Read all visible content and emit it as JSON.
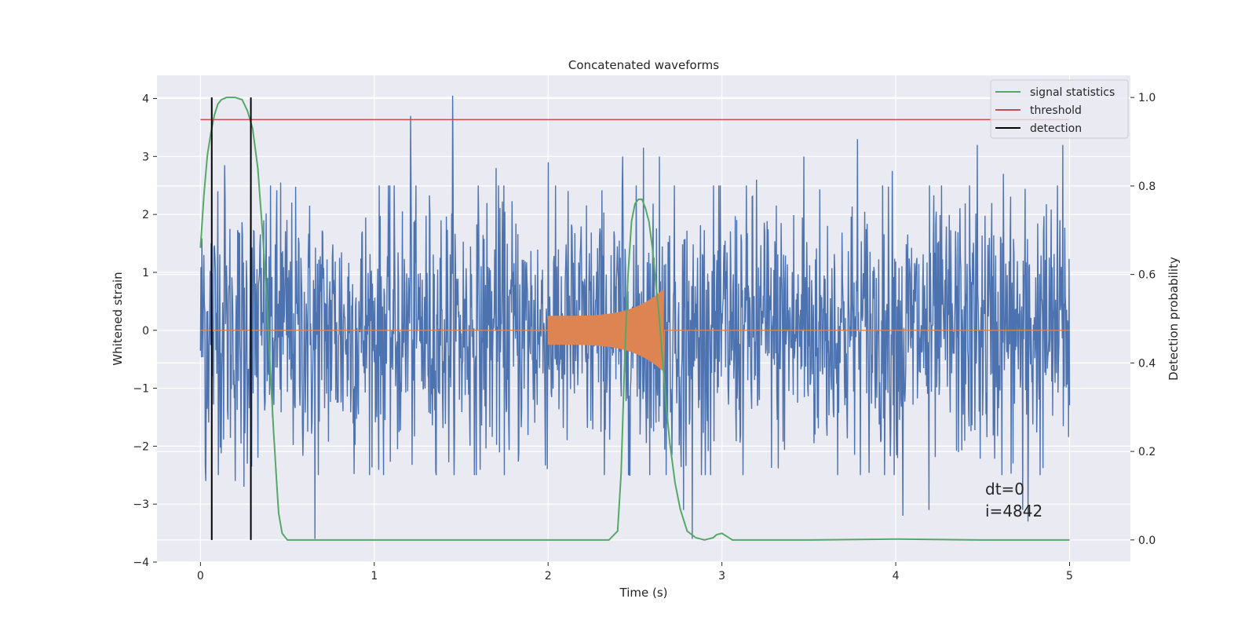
{
  "chart_data": {
    "type": "line",
    "title": "Concatenated waveforms",
    "xlabel": "Time (s)",
    "ylabel_left": "Whitened strain",
    "ylabel_right": "Detection probability",
    "xlim": [
      -0.25,
      5.35
    ],
    "ylim_left": [
      -4.0,
      4.4
    ],
    "ylim_right": [
      -0.05,
      1.05
    ],
    "x_ticks": [
      0,
      1,
      2,
      3,
      4,
      5
    ],
    "x_tick_labels": [
      "0",
      "1",
      "2",
      "3",
      "4",
      "5"
    ],
    "y_left_ticks": [
      -4,
      -3,
      -2,
      -1,
      0,
      1,
      2,
      3,
      4
    ],
    "y_left_tick_labels": [
      "−4",
      "−3",
      "−2",
      "−1",
      "0",
      "1",
      "2",
      "3",
      "4"
    ],
    "y_right_ticks": [
      0.0,
      0.2,
      0.4,
      0.6,
      0.8,
      1.0
    ],
    "y_right_tick_labels": [
      "0.0",
      "0.2",
      "0.4",
      "0.6",
      "0.8",
      "1.0"
    ],
    "grid": true,
    "legend_position": "top-right",
    "series": [
      {
        "name": "noise",
        "axis": "left",
        "color": "#4c72b0",
        "kind": "noise-band",
        "x_range": [
          0,
          5
        ],
        "typical_amplitude": 1.2,
        "peaks": [
          {
            "x": 0.02,
            "y": 1.3
          },
          {
            "x": 0.03,
            "y": -2.6
          },
          {
            "x": 0.06,
            "y": 1.5
          },
          {
            "x": 0.1,
            "y": 2.4
          },
          {
            "x": 0.14,
            "y": 2.85
          },
          {
            "x": 0.2,
            "y": -2.6
          },
          {
            "x": 0.25,
            "y": -2.7
          },
          {
            "x": 0.29,
            "y": 2.5
          },
          {
            "x": 0.33,
            "y": -2.2
          },
          {
            "x": 0.46,
            "y": 2.55
          },
          {
            "x": 0.66,
            "y": -3.6
          },
          {
            "x": 1.21,
            "y": 3.7
          },
          {
            "x": 1.45,
            "y": 4.05
          },
          {
            "x": 1.7,
            "y": 2.8
          },
          {
            "x": 2.0,
            "y": 2.9
          },
          {
            "x": 2.43,
            "y": 3.0
          },
          {
            "x": 2.55,
            "y": 3.15
          },
          {
            "x": 2.64,
            "y": 3.0
          },
          {
            "x": 2.78,
            "y": -3.1
          },
          {
            "x": 2.83,
            "y": -3.6
          },
          {
            "x": 3.2,
            "y": 2.6
          },
          {
            "x": 3.47,
            "y": 3.0
          },
          {
            "x": 3.78,
            "y": 3.3
          },
          {
            "x": 3.98,
            "y": 2.75
          },
          {
            "x": 4.04,
            "y": -3.2
          },
          {
            "x": 4.19,
            "y": -3.1
          },
          {
            "x": 4.47,
            "y": 3.2
          },
          {
            "x": 4.62,
            "y": 2.7
          },
          {
            "x": 4.73,
            "y": -3.1
          },
          {
            "x": 4.76,
            "y": -3.3
          },
          {
            "x": 4.96,
            "y": 3.2
          }
        ]
      },
      {
        "name": "injected signal",
        "axis": "left",
        "color": "#dd8452",
        "kind": "chirp",
        "x_range": [
          0,
          5
        ],
        "chirp_start": 2.0,
        "chirp_end": 2.66,
        "start_amplitude": 0.25,
        "peak_amplitude": 0.7
      },
      {
        "name": "signal statistics",
        "axis": "right",
        "color": "#55a868",
        "x": [
          0.0,
          0.02,
          0.04,
          0.06,
          0.08,
          0.1,
          0.12,
          0.15,
          0.2,
          0.24,
          0.27,
          0.3,
          0.33,
          0.36,
          0.38,
          0.4,
          0.42,
          0.44,
          0.45,
          0.47,
          0.5,
          0.8,
          1.5,
          2.2,
          2.35,
          2.4,
          2.42,
          2.44,
          2.46,
          2.48,
          2.5,
          2.52,
          2.54,
          2.56,
          2.58,
          2.6,
          2.62,
          2.64,
          2.66,
          2.68,
          2.7,
          2.73,
          2.76,
          2.8,
          2.85,
          2.9,
          2.95,
          2.97,
          3.0,
          3.02,
          3.06,
          3.1,
          3.5,
          4.0,
          4.5,
          5.0
        ],
        "y": [
          0.66,
          0.78,
          0.87,
          0.92,
          0.96,
          0.985,
          0.995,
          1.0,
          1.0,
          0.995,
          0.97,
          0.93,
          0.84,
          0.68,
          0.55,
          0.4,
          0.25,
          0.12,
          0.06,
          0.015,
          0.0,
          0.0,
          0.0,
          0.0,
          0.0,
          0.02,
          0.15,
          0.4,
          0.6,
          0.72,
          0.76,
          0.77,
          0.77,
          0.75,
          0.72,
          0.66,
          0.58,
          0.5,
          0.4,
          0.3,
          0.22,
          0.13,
          0.07,
          0.02,
          0.005,
          0.0,
          0.005,
          0.012,
          0.015,
          0.01,
          0.0,
          0.0,
          0.0,
          0.002,
          0.0,
          0.0
        ]
      },
      {
        "name": "threshold",
        "axis": "right",
        "color": "#c44e52",
        "x": [
          0,
          5
        ],
        "y": [
          0.95,
          0.95
        ]
      },
      {
        "name": "detection",
        "axis": "right",
        "color": "#000000",
        "kind": "vertical-lines",
        "x": [
          0.065,
          0.29
        ],
        "y_range": [
          0.0,
          1.0
        ]
      }
    ],
    "annotations": [
      "dt=0",
      "i=4842"
    ]
  },
  "legend": {
    "items": [
      {
        "label": "signal statistics",
        "color": "#55a868"
      },
      {
        "label": "threshold",
        "color": "#c44e52"
      },
      {
        "label": "detection",
        "color": "#000000"
      }
    ]
  },
  "colors": {
    "plot_background": "#eaeaf2",
    "grid": "#ffffff",
    "text": "#262626"
  }
}
